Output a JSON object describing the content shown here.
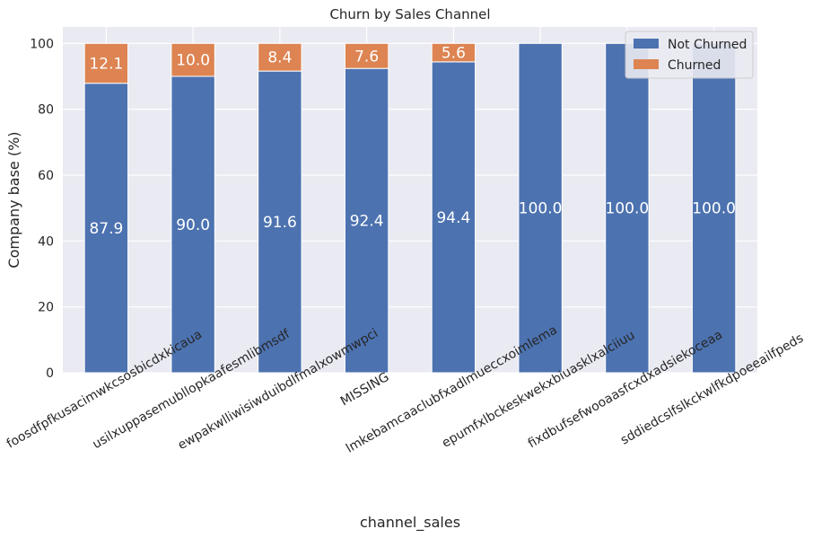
{
  "chart_data": {
    "type": "bar",
    "stacked": true,
    "title": "Churn by Sales Channel",
    "xlabel": "channel_sales",
    "ylabel": "Company base (%)",
    "ylim": [
      0,
      105
    ],
    "yticks": [
      0,
      20,
      40,
      60,
      80,
      100
    ],
    "grid": true,
    "legend_position": "top-right",
    "categories": [
      "foosdfpfkusacimwkcsosbicdxkicaua",
      "usilxuppasemubllopkaafesmlibmsdf",
      "ewpakwlliwisiwduibdlfmalxowmwpci",
      "MISSING",
      "lmkebamcaaclubfxadlmueccxoimlema",
      "epumfxlbckeskwekxbiuasklxalciiuu",
      "fixdbufsefwooaasfcxdxadsiekoceaa",
      "sddiedcslfslkckwlfkdpoeeailfpeds"
    ],
    "series": [
      {
        "name": "Not Churned",
        "color": "#4c72b0",
        "values": [
          87.9,
          90.0,
          91.6,
          92.4,
          94.4,
          100.0,
          100.0,
          100.0
        ],
        "labels": [
          "87.9",
          "90.0",
          "91.6",
          "92.4",
          "94.4",
          "100.0",
          "100.0",
          "100.0"
        ]
      },
      {
        "name": "Churned",
        "color": "#dd8452",
        "values": [
          12.1,
          10.0,
          8.4,
          7.6,
          5.6,
          0,
          0,
          0
        ],
        "labels": [
          "12.1",
          "10.0",
          "8.4",
          "7.6",
          "5.6",
          "",
          "",
          ""
        ]
      }
    ]
  }
}
